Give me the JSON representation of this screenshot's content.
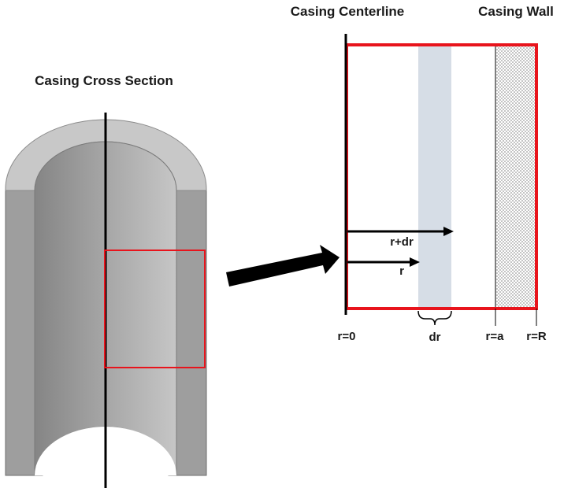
{
  "labels": {
    "cross_section_title": "Casing Cross Section",
    "centerline": "Casing Centerline",
    "wall": "Casing Wall",
    "arrow_r_dr": "r+dr",
    "arrow_r": "r",
    "r0": "r=0",
    "dr": "dr",
    "ra": "r=a",
    "rR": "r=R"
  },
  "colors": {
    "highlight_box": "#e8141c",
    "annulus_band": "#d6dde6",
    "casing_dark": "#9a9a9a",
    "casing_light": "#c9c9c9",
    "outline": "#000000"
  }
}
